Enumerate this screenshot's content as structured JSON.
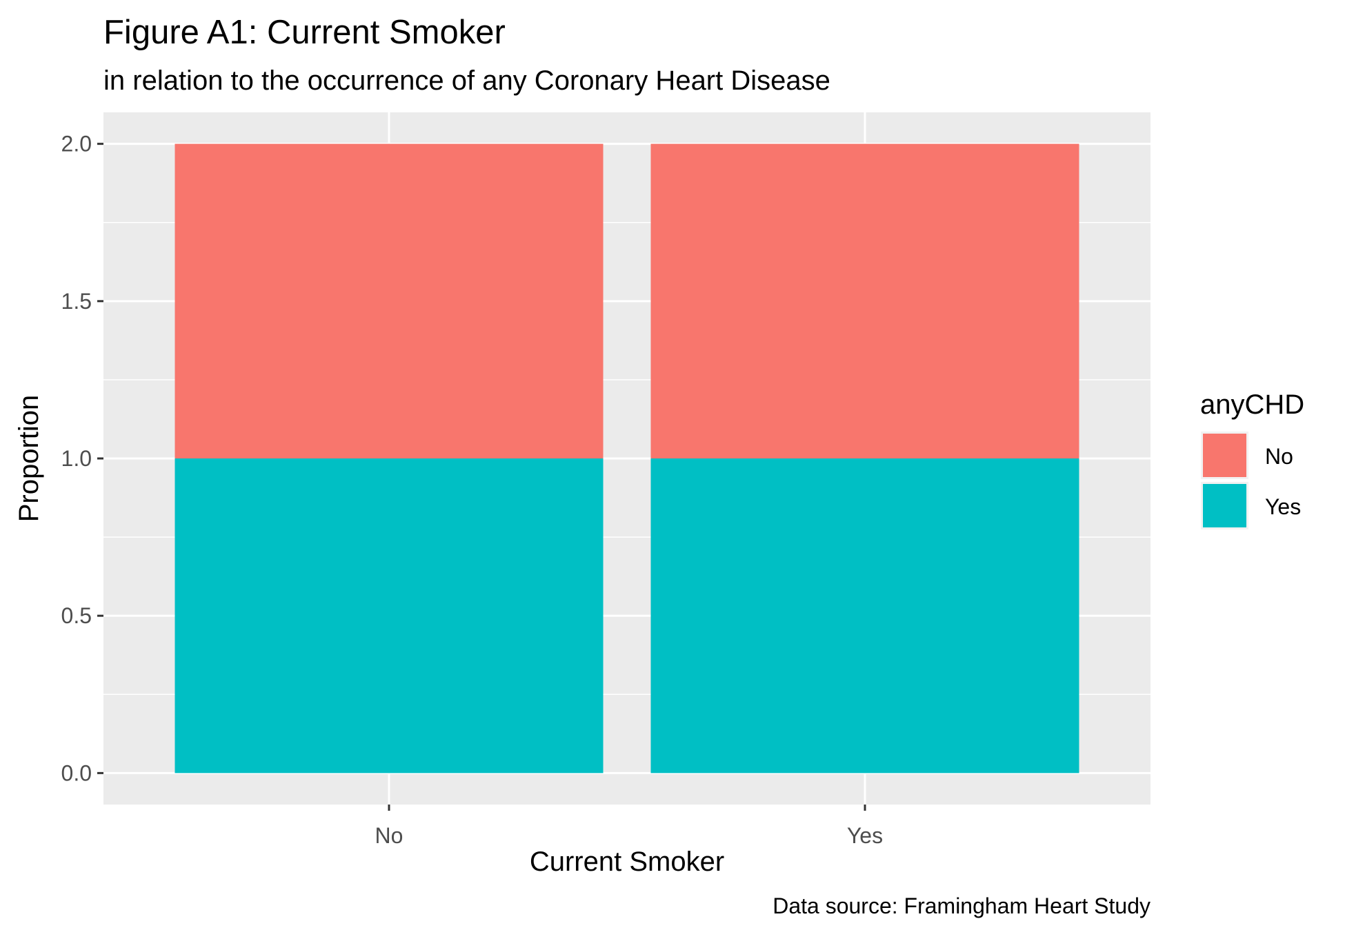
{
  "chart_data": {
    "type": "bar",
    "stacked": true,
    "title": "Figure A1: Current Smoker",
    "subtitle": "in relation to the occurrence of any Coronary Heart Disease",
    "xlabel": "Current Smoker",
    "ylabel": "Proportion",
    "caption": "Data source: Framingham Heart Study",
    "categories": [
      "No",
      "Yes"
    ],
    "series": [
      {
        "name": "Yes",
        "values": [
          1.0,
          1.0
        ],
        "color": "#00BFC4"
      },
      {
        "name": "No",
        "values": [
          1.0,
          1.0
        ],
        "color": "#F8766D"
      }
    ],
    "ylim": [
      -0.1,
      2.1
    ],
    "yticks": [
      0.0,
      0.5,
      1.0,
      1.5,
      2.0
    ],
    "ytick_labels": [
      "0.0",
      "0.5",
      "1.0",
      "1.5",
      "2.0"
    ],
    "grid": true,
    "legend": {
      "title": "anyCHD",
      "position": "right",
      "entries": [
        {
          "label": "No",
          "color": "#F8766D"
        },
        {
          "label": "Yes",
          "color": "#00BFC4"
        }
      ]
    },
    "panel_background": "#EBEBEB",
    "grid_color": "#FFFFFF"
  }
}
